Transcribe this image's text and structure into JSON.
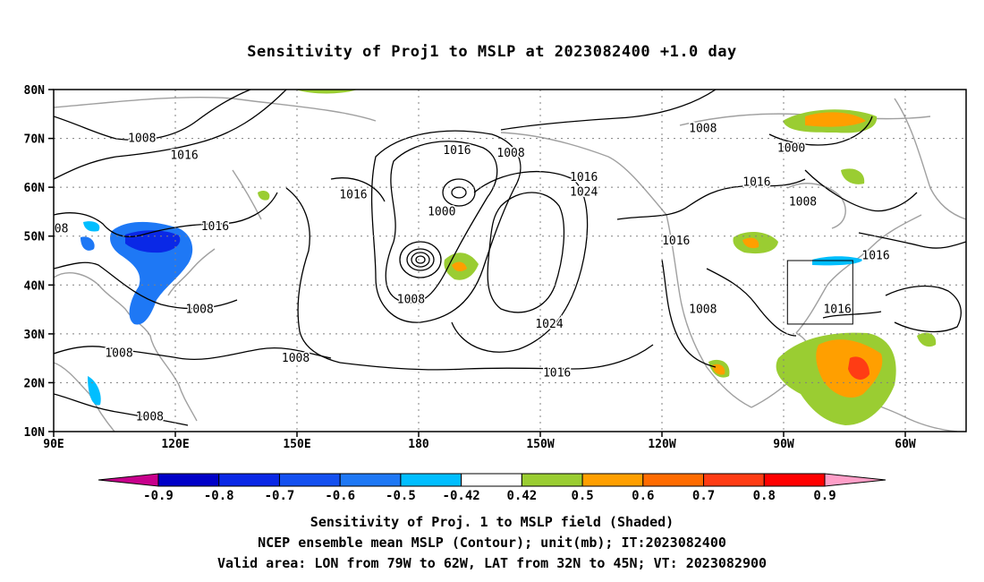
{
  "title": "Sensitivity of Proj1 to MSLP at 2023082400 +1.0 day",
  "axes": {
    "lat_labels": [
      "80N",
      "70N",
      "60N",
      "50N",
      "40N",
      "30N",
      "20N",
      "10N"
    ],
    "lon_labels": [
      "90E",
      "120E",
      "150E",
      "180",
      "150W",
      "120W",
      "90W",
      "60W"
    ]
  },
  "contour_labels": [
    {
      "text": "1008",
      "lon": 113,
      "lat": 70
    },
    {
      "text": "1016",
      "lon": 124,
      "lat": 66.5
    },
    {
      "text": "1016",
      "lon": 132,
      "lat": 52
    },
    {
      "text": "1016",
      "lon": 168,
      "lat": 58.5
    },
    {
      "text": "1016",
      "lon": 195,
      "lat": 67.5
    },
    {
      "text": "1008",
      "lon": 209,
      "lat": 67
    },
    {
      "text": "1016",
      "lon": 228,
      "lat": 62
    },
    {
      "text": "1024",
      "lon": 228,
      "lat": 59
    },
    {
      "text": "1000",
      "lon": 191,
      "lat": 55
    },
    {
      "text": "1008",
      "lon": 183,
      "lat": 37
    },
    {
      "text": "1008",
      "lon": 128,
      "lat": 35
    },
    {
      "text": "1008",
      "lon": 107,
      "lat": 26
    },
    {
      "text": "1008",
      "lon": 153,
      "lat": 25
    },
    {
      "text": "1008",
      "lon": 115,
      "lat": 13
    },
    {
      "text": "1024",
      "lon": 219,
      "lat": 32
    },
    {
      "text": "1016",
      "lon": 221,
      "lat": 22
    },
    {
      "text": "1016",
      "lon": 252,
      "lat": 49
    },
    {
      "text": "1008",
      "lon": 259,
      "lat": 35
    },
    {
      "text": "1008",
      "lon": 259,
      "lat": 72
    },
    {
      "text": "1000",
      "lon": 282,
      "lat": 68
    },
    {
      "text": "1016",
      "lon": 273,
      "lat": 61
    },
    {
      "text": "1008",
      "lon": 285,
      "lat": 57
    },
    {
      "text": "1016",
      "lon": 304,
      "lat": 46
    },
    {
      "text": "1016",
      "lon": 294,
      "lat": 35
    },
    {
      "text": "08",
      "lon": 92,
      "lat": 51.5
    }
  ],
  "colorbar": {
    "labels": [
      "-0.9",
      "-0.8",
      "-0.7",
      "-0.6",
      "-0.5",
      "-0.42",
      "0.42",
      "0.5",
      "0.6",
      "0.7",
      "0.8",
      "0.9"
    ],
    "colors": {
      "low_arrow": "#c8008c",
      "boxes": [
        "#0000c8",
        "#0a28e6",
        "#1450f0",
        "#1e78f5",
        "#00beff",
        "#ffffff",
        "#9acd32",
        "#ff9f00",
        "#ff6b00",
        "#ff3c14",
        "#ff0000"
      ],
      "high_arrow": "#ff9fc8"
    }
  },
  "footer": {
    "line1": "Sensitivity of Proj. 1 to MSLP field (Shaded)",
    "line2": "NCEP ensemble mean MSLP (Contour); unit(mb); IT:2023082400",
    "line3": "Valid area: LON from 79W to 62W, LAT from 32N to 45N; VT: 2023082900"
  },
  "valid_area": {
    "lon_min": -79,
    "lon_max": -62,
    "lat_min": 32,
    "lat_max": 45
  },
  "colors": {
    "land": "#a0a0a0",
    "contour": "#000000",
    "grid": "#808080"
  }
}
